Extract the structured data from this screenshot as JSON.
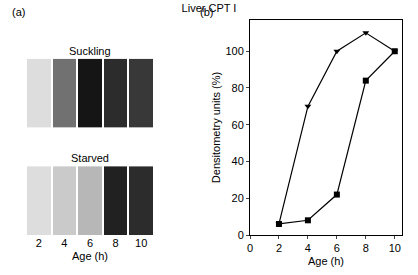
{
  "title": "Liver CPT I",
  "chart_data": [
    {
      "type": "blot",
      "label": "(a)",
      "xlabel": "Age (h)",
      "categories": [
        "2",
        "4",
        "6",
        "8",
        "10"
      ],
      "zlim": [
        0,
        100
      ],
      "series": [
        {
          "name": "Suckling",
          "values": [
            5,
            60,
            100,
            90,
            85
          ]
        },
        {
          "name": "Starved",
          "values": [
            5,
            15,
            25,
            95,
            90
          ]
        }
      ]
    },
    {
      "type": "line",
      "label": "(b)",
      "xlabel": "Age (h)",
      "ylabel": "Densitometry units (%)",
      "x": [
        2,
        4,
        6,
        8,
        10
      ],
      "xlim": [
        0,
        10.5
      ],
      "xticks": [
        0,
        2,
        4,
        6,
        8,
        10
      ],
      "ylim": [
        0,
        117
      ],
      "yticks": [
        0,
        20,
        40,
        60,
        80,
        100
      ],
      "grid": false,
      "series": [
        {
          "color": "#000000",
          "marker": "triangle-down",
          "values": [
            6,
            70,
            100,
            110,
            100
          ]
        },
        {
          "color": "#000000",
          "marker": "square",
          "values": [
            6,
            8,
            22,
            84,
            100
          ]
        }
      ]
    }
  ]
}
